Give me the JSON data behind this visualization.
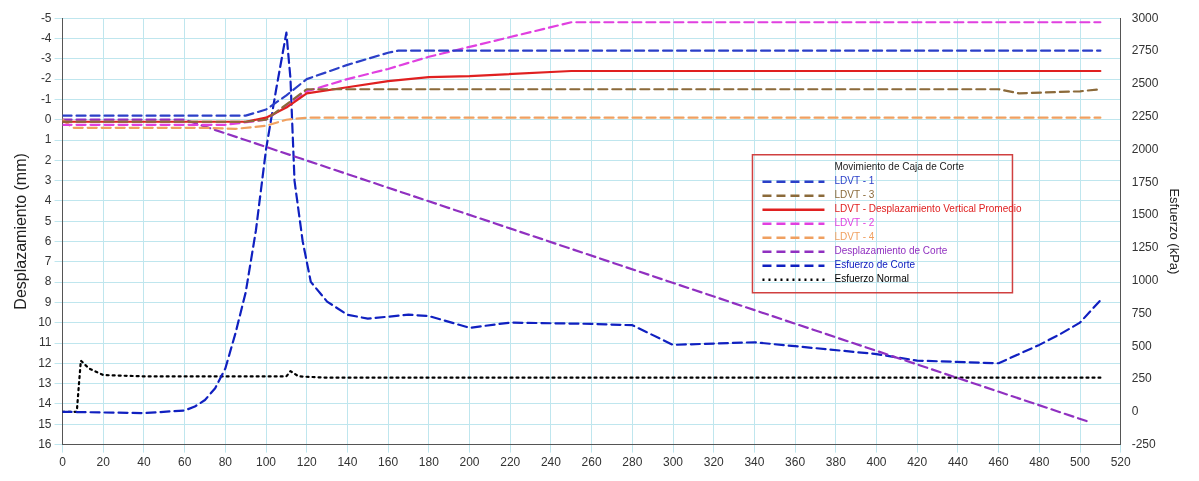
{
  "chart_data": {
    "type": "line",
    "ylabel": "Desplazamiento (mm)",
    "y2label": "Esfuerzo (kPa)",
    "legend_title": "Movimiento de Caja de Corte",
    "legend": "right",
    "grid": true,
    "marker": "none",
    "xlim": [
      0,
      520
    ],
    "xticks": [
      0,
      20,
      40,
      60,
      80,
      100,
      120,
      140,
      160,
      180,
      200,
      220,
      240,
      260,
      280,
      300,
      320,
      340,
      360,
      380,
      400,
      420,
      440,
      460,
      480,
      500,
      520
    ],
    "ylim": [
      16,
      -5
    ],
    "yticks": [
      -5,
      -4,
      -3,
      -2,
      -1,
      0,
      1,
      2,
      3,
      4,
      5,
      6,
      7,
      8,
      9,
      10,
      11,
      12,
      13,
      14,
      15,
      16
    ],
    "y2lim": [
      -250,
      3000
    ],
    "y2ticks": [
      -250,
      0,
      250,
      500,
      750,
      1000,
      1250,
      1500,
      1750,
      2000,
      2250,
      2500,
      2750,
      3000
    ],
    "series": [
      {
        "name": "LDVT - 1",
        "color": "#2b3fc8",
        "line_style": "dashed",
        "x": [
          0,
          90,
          100,
          110,
          120,
          140,
          160,
          165,
          510
        ],
        "values": [
          -0.2,
          -0.2,
          -0.5,
          -1.2,
          -2.0,
          -2.7,
          -3.3,
          -3.4,
          -3.4
        ]
      },
      {
        "name": "LDVT - 3",
        "color": "#8b6a3a",
        "line_style": "dashed",
        "x": [
          0,
          90,
          100,
          120,
          460,
          470,
          500,
          510
        ],
        "values": [
          0.1,
          0.1,
          0,
          -1.5,
          -1.5,
          -1.3,
          -1.4,
          -1.5
        ]
      },
      {
        "name": "LDVT - Desplazamiento Vertical Promedio",
        "color": "#e02020",
        "line_style": "solid",
        "x": [
          0,
          90,
          100,
          110,
          120,
          140,
          160,
          180,
          200,
          250,
          510
        ],
        "values": [
          0.1,
          0.1,
          -0.1,
          -0.6,
          -1.3,
          -1.6,
          -1.9,
          -2.1,
          -2.15,
          -2.4,
          -2.4
        ]
      },
      {
        "name": "LDVT - 2",
        "color": "#e040e0",
        "line_style": "dashed",
        "x": [
          0,
          80,
          100,
          120,
          140,
          160,
          180,
          250,
          510
        ],
        "values": [
          0.25,
          0.25,
          0,
          -1.4,
          -2.0,
          -2.5,
          -3.1,
          -4.8,
          -4.8
        ]
      },
      {
        "name": "LDVT - 4",
        "color": "#f0a060",
        "line_style": "dashed",
        "x": [
          0,
          5,
          40,
          70,
          85,
          100,
          110,
          120,
          510
        ],
        "values": [
          0,
          0.4,
          0.4,
          0.4,
          0.45,
          0.3,
          0,
          -0.1,
          -0.1
        ]
      },
      {
        "name": "Desplazamiento de Corte",
        "color": "#9030c0",
        "line_style": "dashed",
        "x": [
          0,
          60,
          505
        ],
        "values": [
          0,
          0,
          14.9
        ]
      },
      {
        "name": "Esfuerzo de Corte",
        "color": "#1020c0",
        "line_style": "dashed",
        "axis": "y2",
        "x": [
          0,
          40,
          60,
          65,
          70,
          75,
          80,
          85,
          90,
          95,
          100,
          105,
          110,
          112,
          114,
          118,
          122,
          130,
          140,
          150,
          170,
          180,
          200,
          220,
          260,
          280,
          300,
          340,
          360,
          400,
          420,
          460,
          470,
          480,
          490,
          500,
          510
        ],
        "values": [
          0,
          -10,
          10,
          40,
          90,
          180,
          330,
          600,
          910,
          1380,
          2000,
          2460,
          2890,
          2540,
          1760,
          1300,
          990,
          840,
          740,
          710,
          740,
          730,
          640,
          680,
          670,
          660,
          510,
          530,
          500,
          440,
          390,
          370,
          440,
          510,
          590,
          680,
          850
        ]
      },
      {
        "name": "Esfuerzo Normal",
        "color": "#000000",
        "line_style": "dotted",
        "axis": "y2",
        "x": [
          0,
          7,
          8,
          9,
          13,
          20,
          40,
          110,
          112,
          116,
          130,
          510
        ],
        "values": [
          0,
          0,
          200,
          390,
          330,
          280,
          270,
          270,
          310,
          270,
          260,
          260
        ]
      }
    ]
  }
}
